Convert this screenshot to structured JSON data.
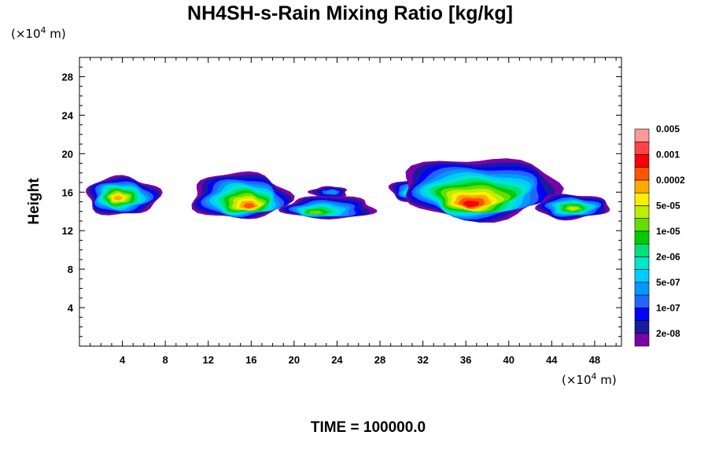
{
  "chart_data": {
    "type": "heatmap",
    "title": "NH4SH-s-Rain Mixing Ratio [kg/kg]",
    "xlabel": "",
    "ylabel": "Height",
    "x_unit": "(×10",
    "x_unit_exp": "4",
    "x_unit_tail": " m)",
    "y_unit": "(×10",
    "y_unit_exp": "4",
    "y_unit_tail": " m)",
    "xlim": [
      0,
      50.5
    ],
    "ylim": [
      0,
      30
    ],
    "xticks": [
      4,
      8,
      12,
      16,
      20,
      24,
      28,
      32,
      36,
      40,
      44,
      48
    ],
    "yticks": [
      4,
      8,
      12,
      16,
      20,
      24,
      28
    ],
    "colorbar": {
      "colors": [
        "#7a00aa",
        "#1a1a9e",
        "#0000ff",
        "#2266ff",
        "#0099ff",
        "#00ccff",
        "#00e6cc",
        "#00e07a",
        "#00cc00",
        "#66dd00",
        "#bbee00",
        "#ffee00",
        "#ffaa00",
        "#ff5500",
        "#ff0000",
        "#ff4444",
        "#ff9999"
      ],
      "labels": [
        "2e-08",
        "1e-07",
        "5e-07",
        "2e-06",
        "1e-05",
        "5e-05",
        "0.0002",
        "0.001",
        "0.005"
      ]
    },
    "clouds": [
      {
        "x0": 0.6,
        "x1": 7.4,
        "y0": 13.6,
        "y1": 17.6,
        "cx": 3.6,
        "cy": 15.4,
        "peak": 12
      },
      {
        "x0": 10.4,
        "x1": 19.5,
        "y0": 13.2,
        "y1": 18.0,
        "cx": 15.8,
        "cy": 14.6,
        "peak": 13
      },
      {
        "x0": 19.0,
        "x1": 27.5,
        "y0": 13.2,
        "y1": 15.6,
        "cx": 22.0,
        "cy": 13.9,
        "peak": 9
      },
      {
        "x0": 21.5,
        "x1": 25.0,
        "y0": 15.4,
        "y1": 16.6,
        "cx": 23.5,
        "cy": 16.0,
        "peak": 4
      },
      {
        "x0": 29.0,
        "x1": 34.5,
        "y0": 14.8,
        "y1": 17.5,
        "cx": 31.5,
        "cy": 15.8,
        "peak": 9
      },
      {
        "x0": 30.0,
        "x1": 44.5,
        "y0": 13.2,
        "y1": 19.6,
        "cx": 36.5,
        "cy": 14.8,
        "peak": 14
      },
      {
        "x0": 42.5,
        "x1": 49.3,
        "y0": 13.2,
        "y1": 15.8,
        "cx": 46.0,
        "cy": 14.3,
        "peak": 10
      }
    ],
    "time_label": "TIME = 100000.0"
  }
}
